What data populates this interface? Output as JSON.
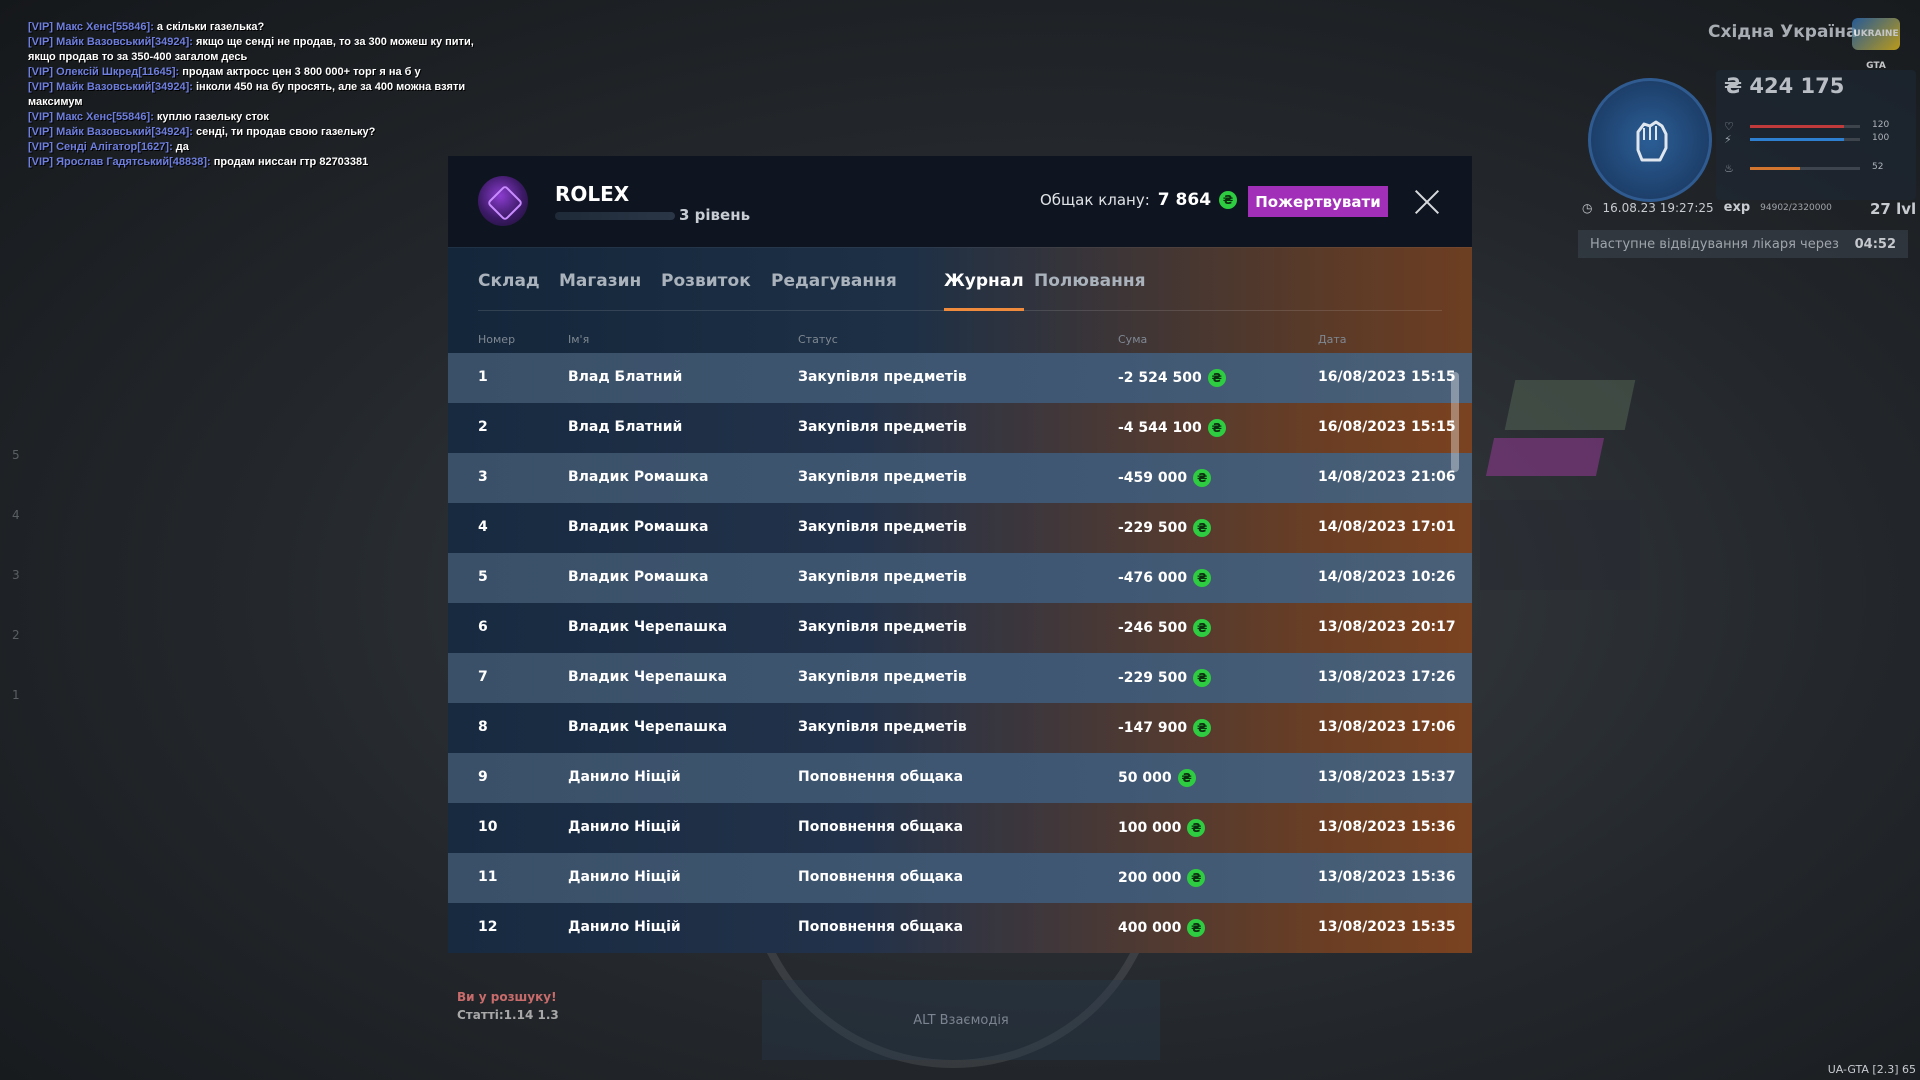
{
  "chat": [
    {
      "author": "[VIP] Макс Хенс[55846]:",
      "text": " а скільки газелька?"
    },
    {
      "author": "[VIP] Майк Вазовський[34924]:",
      "text": " якщо ще сенді не продав, то за 300 можеш ку пити, якщо продав то за 350-400 загалом десь"
    },
    {
      "author": "[VIP] Олексій Шкред[11645]:",
      "text": " продам актросс цен 3 800 000+ торг я на б у"
    },
    {
      "author": "[VIP] Майк Вазовський[34924]:",
      "text": " інколи 450 на бу просять, але за 400 можна взяти максимум"
    },
    {
      "author": "[VIP] Макс Хенс[55846]:",
      "text": " куплю газельку сток"
    },
    {
      "author": "[VIP] Майк Вазовський[34924]:",
      "text": " сенді, ти продав свою газельку?"
    },
    {
      "author": "[VIP] Сенді Алігатор[1627]:",
      "text": " да"
    },
    {
      "author": "[VIP] Ярослав Гадятський[48838]:",
      "text": " продам ниссан гтр 82703381"
    }
  ],
  "hud": {
    "server_name": "Східна Україна",
    "logo_text": "UKRAINE GTA",
    "money": "₴ 424 175",
    "health_val": "120",
    "armor_val": "100",
    "hunger_val": "52",
    "datetime": "16.08.23 19:27:25",
    "exp_label": "exp",
    "exp_value": "94902/2320000",
    "level": "27 lvl",
    "doctor_text": "Наступне відвідування лікаря через",
    "doctor_time": "04:52",
    "health_fill": 0.85,
    "armor_fill": 0.85,
    "hunger_fill": 0.45,
    "side_numbers": [
      "5",
      "4",
      "3",
      "2",
      "1"
    ],
    "wanted_title": "Ви у розшуку!",
    "wanted_articles": "Статті:1.14 1.3",
    "alt_hint": "ALT Взаємодія",
    "version": "UA-GTA [2.3] 65"
  },
  "modal": {
    "clan_name": "ROLEX",
    "clan_level": "3 рівень",
    "treasury_label": "Общак клану:",
    "treasury_value": "7 864",
    "currency_symbol": "₴",
    "donate_label": "Пожертвувати",
    "tabs": [
      "Склад",
      "Магазин",
      "Розвиток",
      "Редагування",
      "Журнал",
      "Полювання"
    ],
    "active_tab": "Журнал",
    "columns": [
      "Номер",
      "Ім'я",
      "Статус",
      "Сума",
      "Дата"
    ],
    "rows": [
      {
        "num": "1",
        "name": "Влад Блатний",
        "status": "Закупівля предметів",
        "sum": "-2 524 500",
        "date": "16/08/2023 15:15"
      },
      {
        "num": "2",
        "name": "Влад Блатний",
        "status": "Закупівля предметів",
        "sum": "-4 544 100",
        "date": "16/08/2023 15:15"
      },
      {
        "num": "3",
        "name": "Владик Ромашка",
        "status": "Закупівля предметів",
        "sum": "-459 000",
        "date": "14/08/2023 21:06"
      },
      {
        "num": "4",
        "name": "Владик Ромашка",
        "status": "Закупівля предметів",
        "sum": "-229 500",
        "date": "14/08/2023 17:01"
      },
      {
        "num": "5",
        "name": "Владик Ромашка",
        "status": "Закупівля предметів",
        "sum": "-476 000",
        "date": "14/08/2023 10:26"
      },
      {
        "num": "6",
        "name": "Владик Черепашка",
        "status": "Закупівля предметів",
        "sum": "-246 500",
        "date": "13/08/2023 20:17"
      },
      {
        "num": "7",
        "name": "Владик Черепашка",
        "status": "Закупівля предметів",
        "sum": "-229 500",
        "date": "13/08/2023 17:26"
      },
      {
        "num": "8",
        "name": "Владик Черепашка",
        "status": "Закупівля предметів",
        "sum": "-147 900",
        "date": "13/08/2023 17:06"
      },
      {
        "num": "9",
        "name": "Данило Ніщій",
        "status": "Поповнення общака",
        "sum": "50 000",
        "date": "13/08/2023 15:37"
      },
      {
        "num": "10",
        "name": "Данило Ніщій",
        "status": "Поповнення общака",
        "sum": "100 000",
        "date": "13/08/2023 15:36"
      },
      {
        "num": "11",
        "name": "Данило Ніщій",
        "status": "Поповнення общака",
        "sum": "200 000",
        "date": "13/08/2023 15:36"
      },
      {
        "num": "12",
        "name": "Данило Ніщій",
        "status": "Поповнення общака",
        "sum": "400 000",
        "date": "13/08/2023 15:35"
      }
    ]
  },
  "colors": {
    "accent_tab": "#f08a3c",
    "donate": "#a12fb8",
    "coin": "#2ecc40",
    "chat_author": "#6f7fe0"
  }
}
